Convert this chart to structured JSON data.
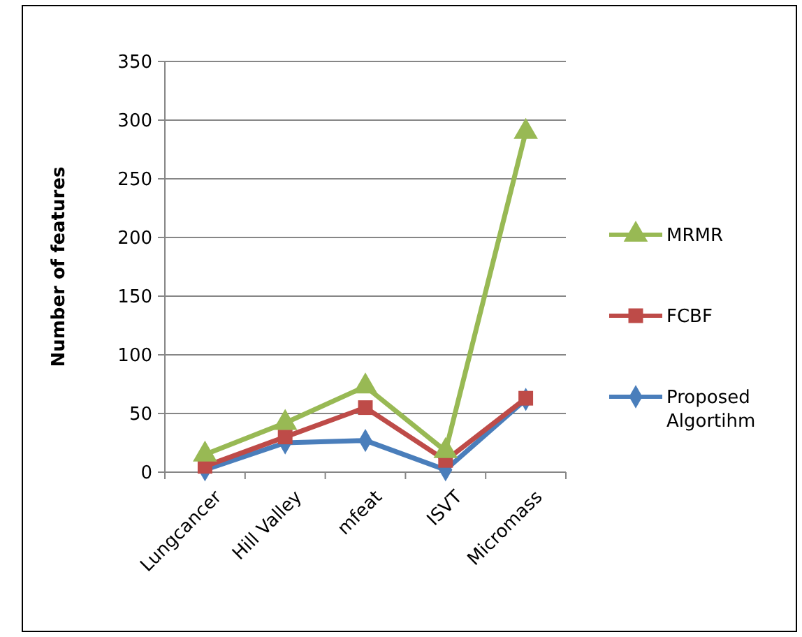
{
  "chart_data": {
    "type": "line",
    "ylabel": "Number of features",
    "categories": [
      "Lungcancer",
      "Hill Valley",
      "mfeat",
      "ISVT",
      "Micromass"
    ],
    "series": [
      {
        "name": "Proposed Algortihm",
        "color": "#4a7ebb",
        "marker": "diamond",
        "values": [
          2,
          25,
          27,
          2,
          62
        ]
      },
      {
        "name": "FCBF",
        "color": "#be4b48",
        "marker": "square",
        "values": [
          5,
          30,
          55,
          10,
          63
        ]
      },
      {
        "name": "MRMR",
        "color": "#98b954",
        "marker": "triangle",
        "values": [
          15,
          42,
          73,
          18,
          290
        ]
      }
    ],
    "ylim": [
      0,
      350
    ],
    "yticks": [
      0,
      50,
      100,
      150,
      200,
      250,
      300,
      350
    ],
    "grid": "y",
    "legend": "right"
  }
}
